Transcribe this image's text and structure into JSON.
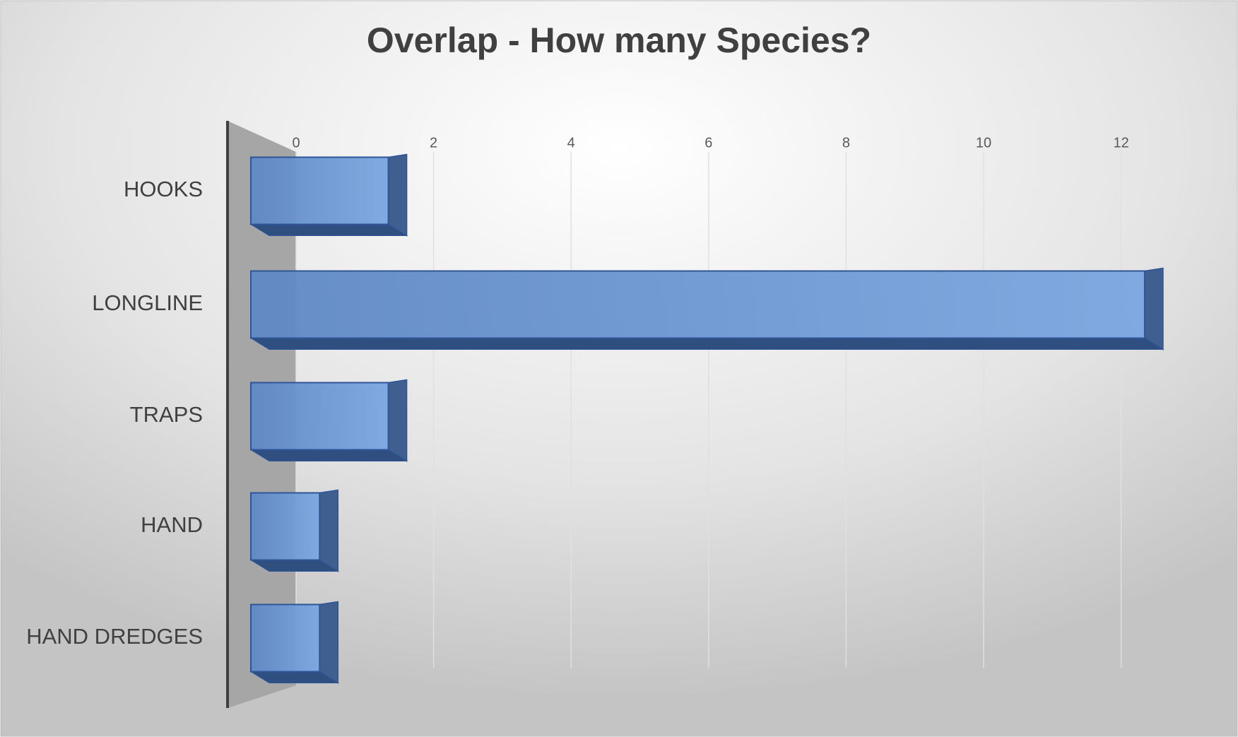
{
  "chart_data": {
    "type": "bar",
    "orientation": "horizontal",
    "title": "Overlap - How many Species?",
    "categories": [
      "HOOKS",
      "LONGLINE",
      "TRAPS",
      "HAND",
      "HAND DREDGES"
    ],
    "values": [
      2,
      13,
      2,
      1,
      1
    ],
    "color": "#5b8dd0",
    "xlim": [
      0,
      13
    ],
    "xticks": [
      0,
      2,
      4,
      6,
      8,
      10,
      12
    ],
    "grid": true
  }
}
